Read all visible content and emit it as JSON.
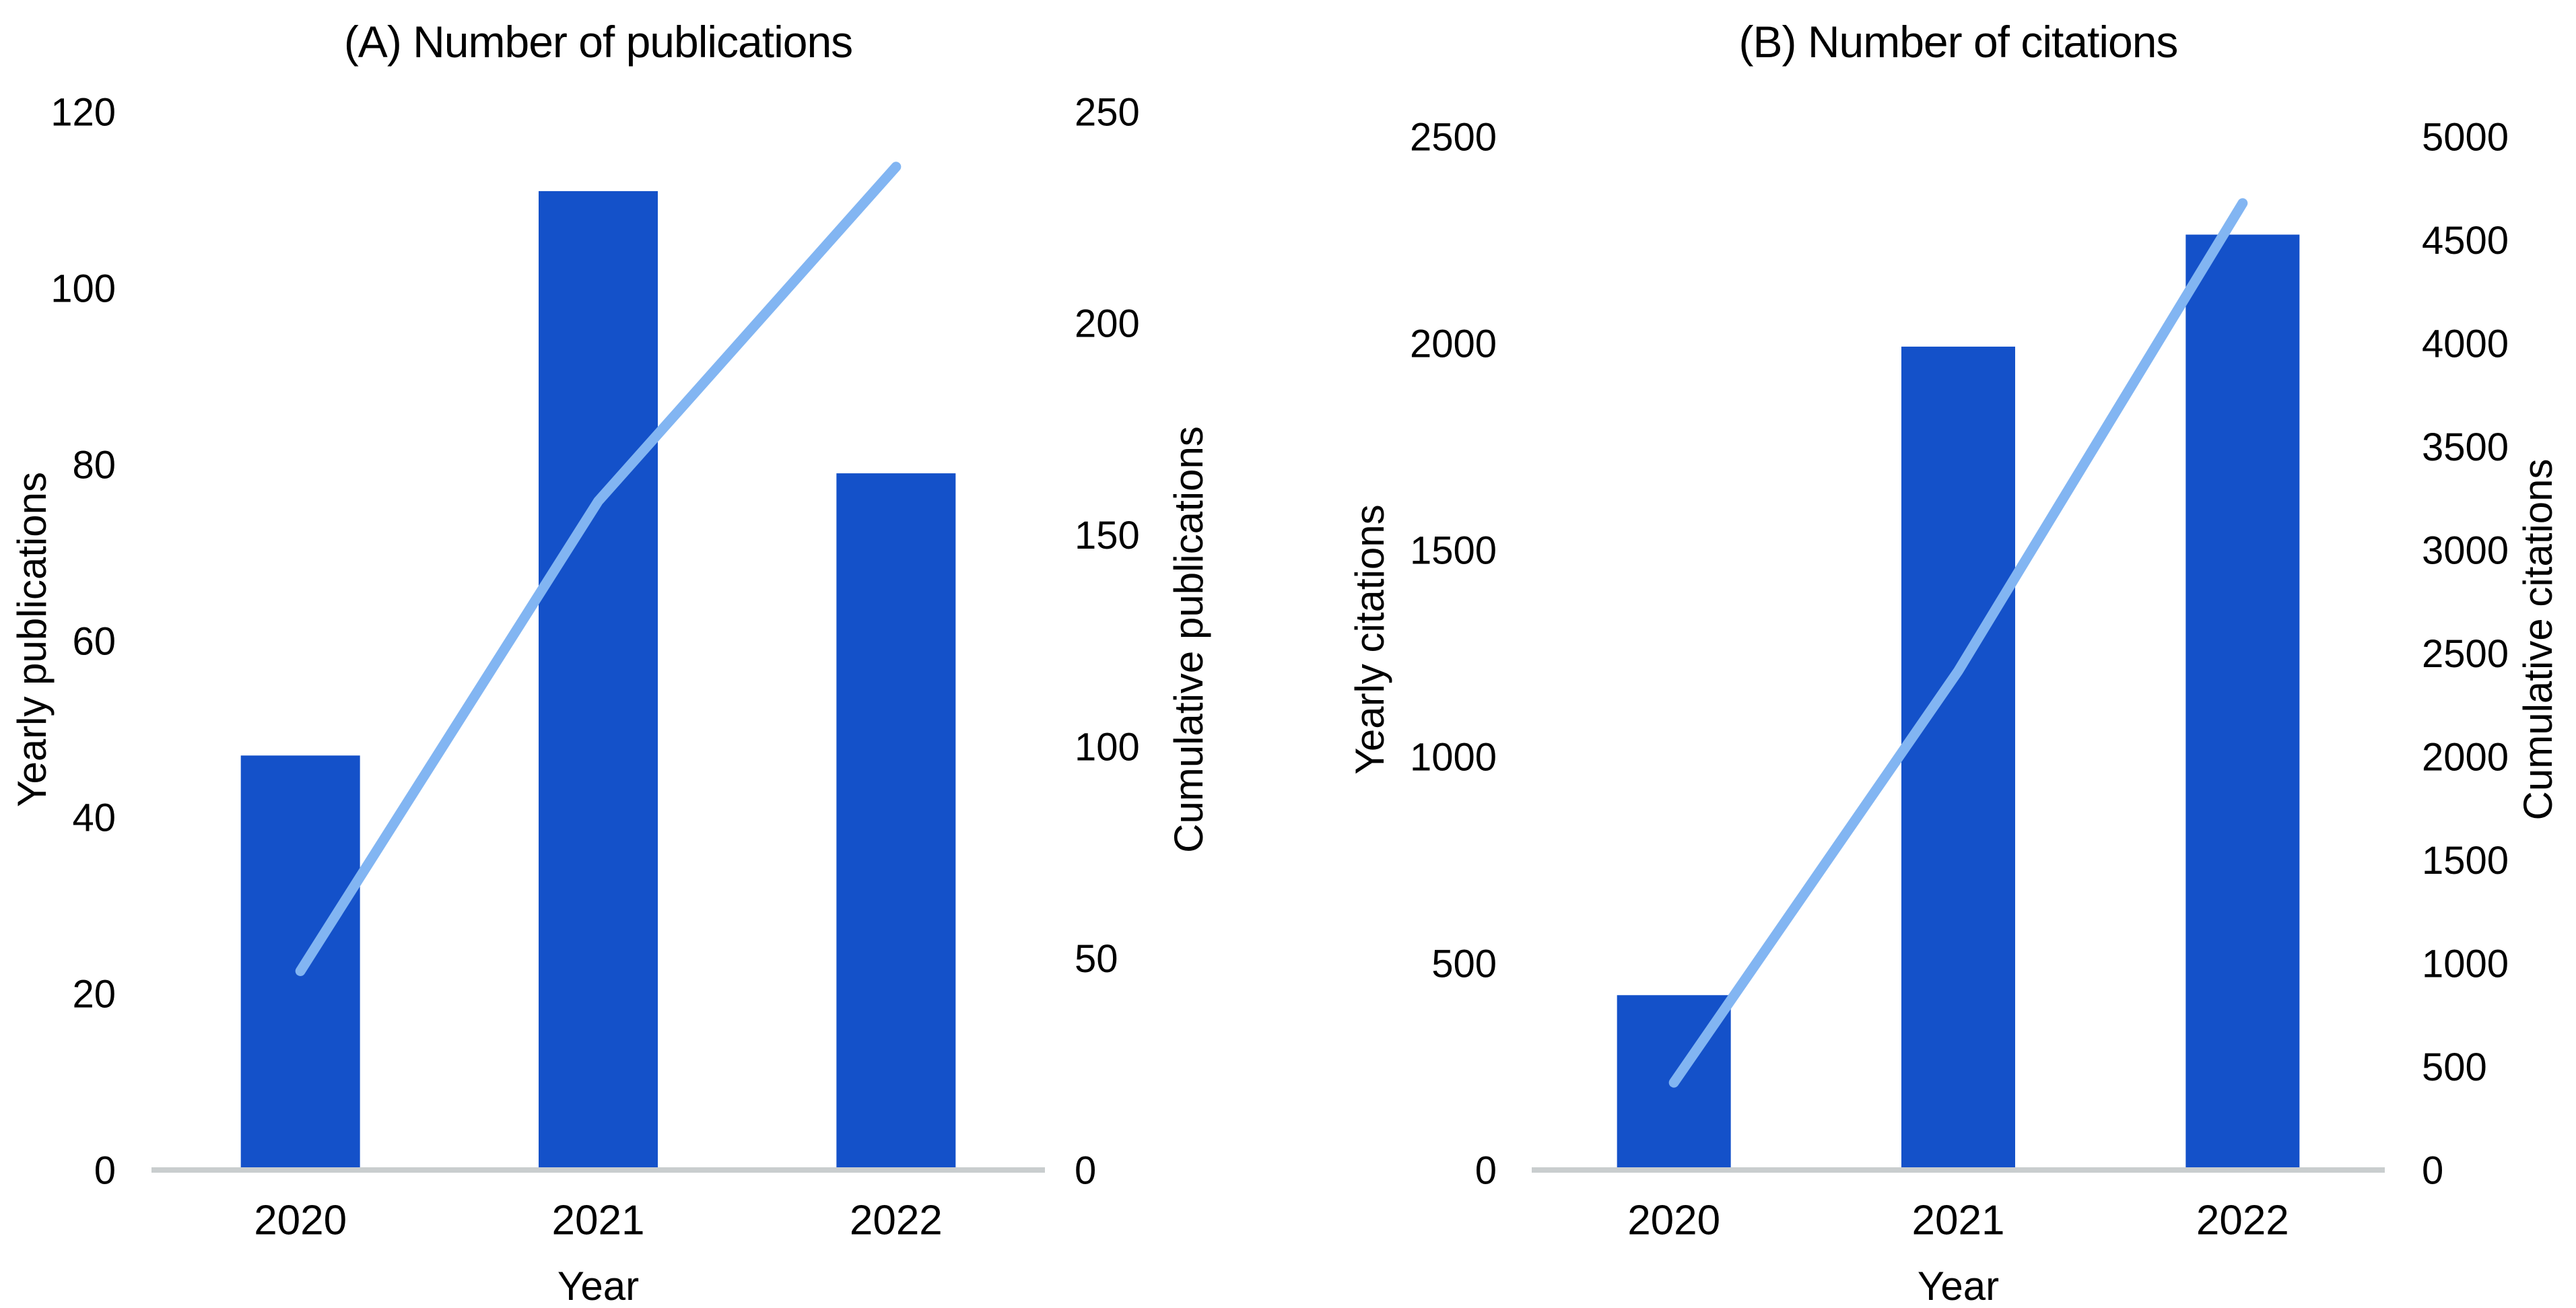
{
  "figure": {
    "background": "#ffffff"
  },
  "colors": {
    "bar": "#1451c9",
    "line": "#82b5f2",
    "axis_line": "#c9cdce",
    "text": "#000000"
  },
  "chart_data": [
    {
      "type": "bar+line",
      "title": "(A) Number of publications",
      "xlabel": "Year",
      "categories": [
        "2020",
        "2021",
        "2022"
      ],
      "series": [
        {
          "name": "Yearly publications",
          "type": "bar",
          "axis": "left",
          "values": [
            47,
            111,
            79
          ]
        },
        {
          "name": "Cumulative publications",
          "type": "line",
          "axis": "right",
          "values": [
            47,
            158,
            237
          ]
        }
      ],
      "left_axis": {
        "label": "Yearly publications",
        "min": 0,
        "max": 120,
        "ticks": [
          0,
          20,
          40,
          60,
          80,
          100,
          120
        ]
      },
      "right_axis": {
        "label": "Cumulative publications",
        "min": 0,
        "max": 250,
        "ticks": [
          0,
          50,
          100,
          150,
          200,
          250
        ]
      },
      "grid": false,
      "legend": false
    },
    {
      "type": "bar+line",
      "title": "(B) Number of citations",
      "xlabel": "Year",
      "categories": [
        "2020",
        "2021",
        "2022"
      ],
      "series": [
        {
          "name": "Yearly citations",
          "type": "bar",
          "axis": "left",
          "values": [
            423,
            1992,
            2263
          ]
        },
        {
          "name": "Cumulative citations",
          "type": "line",
          "axis": "right",
          "values": [
            423,
            2415,
            4678
          ]
        }
      ],
      "left_axis": {
        "label": "Yearly citations",
        "min": 0,
        "max": 2500,
        "ticks": [
          0,
          500,
          1000,
          1500,
          2000,
          2500
        ]
      },
      "right_axis": {
        "label": "Cumulative citations",
        "min": 0,
        "max": 5000,
        "ticks": [
          0,
          500,
          1000,
          1500,
          2000,
          2500,
          3000,
          3500,
          4000,
          4500,
          5000
        ]
      },
      "grid": false,
      "legend": false
    }
  ]
}
